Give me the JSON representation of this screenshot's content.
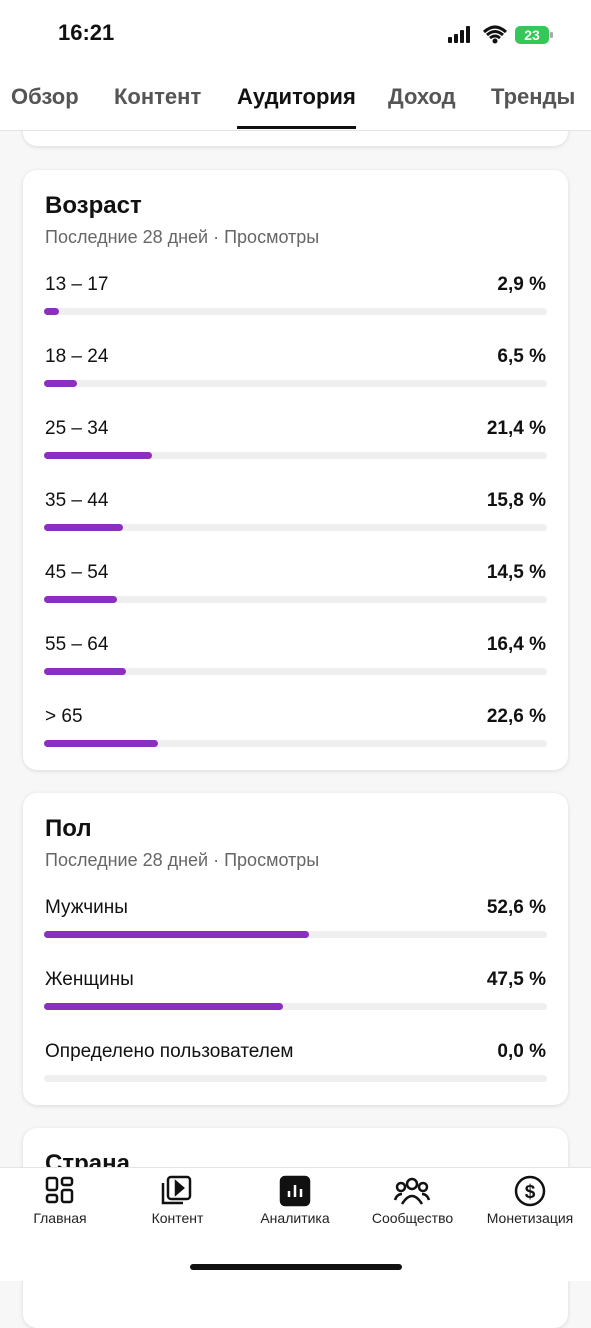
{
  "status": {
    "time": "16:21",
    "battery": "23"
  },
  "tabs": [
    "Обзор",
    "Контент",
    "Аудитория",
    "Доход",
    "Тренды"
  ],
  "active_tab": 2,
  "xlim": [
    0,
    100
  ],
  "sections": [
    {
      "title": "Возраст",
      "subtitle": "Последние 28 дней · Просмотры",
      "rows": [
        {
          "label": "13 – 17",
          "value": 2.9,
          "value_label": "2,9 %"
        },
        {
          "label": "18 – 24",
          "value": 6.5,
          "value_label": "6,5 %"
        },
        {
          "label": "25 – 34",
          "value": 21.4,
          "value_label": "21,4 %"
        },
        {
          "label": "35 – 44",
          "value": 15.8,
          "value_label": "15,8 %"
        },
        {
          "label": "45 – 54",
          "value": 14.5,
          "value_label": "14,5 %"
        },
        {
          "label": "55 – 64",
          "value": 16.4,
          "value_label": "16,4 %"
        },
        {
          "label": "> 65",
          "value": 22.6,
          "value_label": "22,6 %"
        }
      ]
    },
    {
      "title": "Пол",
      "subtitle": "Последние 28 дней · Просмотры",
      "rows": [
        {
          "label": "Мужчины",
          "value": 52.6,
          "value_label": "52,6 %"
        },
        {
          "label": "Женщины",
          "value": 47.5,
          "value_label": "47,5 %"
        },
        {
          "label": "Определено пользователем",
          "value": 0.0,
          "value_label": "0,0 %"
        }
      ]
    },
    {
      "title": "Страна"
    }
  ],
  "nav": [
    "Главная",
    "Контент",
    "Аналитика",
    "Сообщество",
    "Монетизация"
  ]
}
